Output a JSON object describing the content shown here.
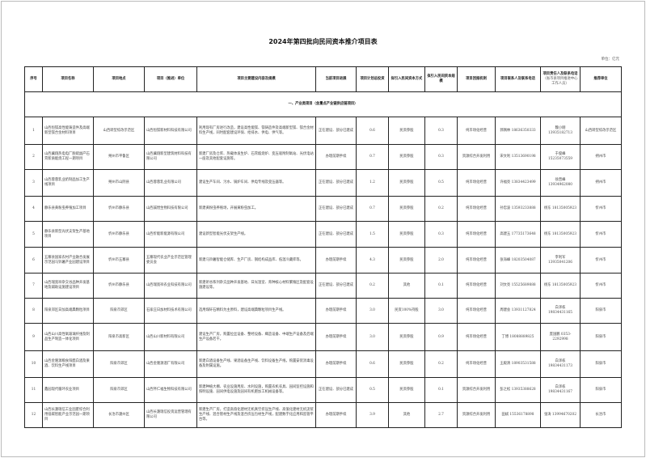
{
  "title": "2024年第四批向民间资本推介项目表",
  "unit": "单位：亿元",
  "headers": [
    "序号",
    "项目名称",
    "项目地点",
    "项目（推进）单位",
    "项目主要建设内容及规模",
    "当前项目进展",
    "项目计划总投资",
    "拟引入民间资本方式",
    "拟引入民间资本规模",
    "项目回报机制",
    "项目联系人及联系电话",
    "项目责任人及联系电话",
    "推荐单位"
  ],
  "header_note": "（省市县项目推进中心工作人员）",
  "section": "一、产业类项目（含重点产业链供应链项目）",
  "rows": [
    [
      "1",
      "山西恒镁高性能铸造件及高端新型镁合金材料项目",
      "山西转型综改示范区",
      "山西恒镁新材料科技有限公司",
      "利用现有厂房进行改造，建设高性能镁、镁铸造件及高端新型镁、镁合金材料生产线，同时配套建设环保、给排水、供电、供气等。",
      "正在建设、部分已建成",
      "0.6",
      "民资参股",
      "0.3",
      "纯市场化经营",
      "郭佩林 18636350333",
      "魏小刚 13935182713",
      "山西转型综改示范区"
    ],
    [
      "2",
      "山西冀翔热电电厂脱硫副产石膏新质能烧工程一期项目",
      "朔州市平鲁区",
      "山西冀翔新型建筑材料科技有限公司",
      "新建厂房及仓库、热载体发生炉、石膏煅烧炉、变压吸附制氧站、光伏电站一座及其他配套设施等。",
      "办理前期手续",
      "0.7",
      "民资参股",
      "0.3",
      "资源综合开发利用",
      "宋文利 13513690198",
      "于俊峰 15235073559",
      "朔州市"
    ],
    [
      "3",
      "山西蓉蓉乳业奶制品加工生产线项目",
      "朔州市山阴县",
      "山西蓉蓉乳业有限公司",
      "建设生产车间、污水、锅炉车间、供电专线及变压器等。",
      "正在建设、部分已建成",
      "1.2",
      "民资参股",
      "0.5",
      "纯市场化经营",
      "许福亮 13834423499",
      "徐晋峰 13934962080",
      "朔州市"
    ],
    [
      "4",
      "静乐县黄粉虫养殖加工项目",
      "忻州市静乐县",
      "山西誠煜生物科技有限公司",
      "新建黄粉虫养殖场，开展黄粉虫加工。",
      "正在建设、部分已建成",
      "0.7",
      "民资参股",
      "0.2",
      "纯市场化经营",
      "孙忠波 13593233888",
      "杨东 18135005923",
      "忻州市"
    ],
    [
      "5",
      "静乐县新型光伏支架生产基地项目",
      "忻州市静乐县",
      "山西忻能新能源有限公司",
      "建设新型智能光伏支架生产线。",
      "正在建设、部分已建成",
      "1.5",
      "民资参股",
      "0.3",
      "纯市场化经营",
      "高建玉 17735173648",
      "杨东 18135005923",
      "忻州市"
    ],
    [
      "6",
      "五寨县国家农村产业融合发展示范园马铃薯产业园建设项目",
      "忻州市五寨县",
      "五寨现代农业产业示范区管理委员会",
      "新建马铃薯智能仓储库、生产厂房、钢结构成品库、低温冷藏库等。",
      "办理前期手续",
      "4.3",
      "民资参股",
      "2.0",
      "纯市场化经营",
      "张海峰 18203504087",
      "李利军 13935041206",
      "忻州市"
    ],
    [
      "7",
      "山西瑞宽祥杂交谷品种开发基地及辅助设施建设项目",
      "忻州市静乐县",
      "山西瑞宽祥农业科技有限公司",
      "新建祈谷系列杂交品种开发基地、日光温室、育种核心材料繁殖区及配套设施建设等。",
      "正在建设、部分已建成",
      "0.2",
      "其他",
      "0.1",
      "纯市场化经营",
      "刘文亮 15525689888",
      "杨东 18135005923",
      "忻州市"
    ],
    [
      "8",
      "阳泉郊区日加高端典颗粒项目",
      "阳泉市郊区",
      "石家庄日加材料技术有限公司",
      "选用煤矸石精料为主原料，建设高端典颗粒项目生产线。",
      "办理前期手续",
      "3.0",
      "民资100%持股",
      "3.0",
      "纯市场化经营",
      "周建会 13931127824",
      "白泽栋 19834431165",
      "阳泉市"
    ],
    [
      "9",
      "山西山川高性氧玻璃纤维及制品生产制造一体化项目",
      "阳泉市高新区",
      "山西山川新材料有限公司",
      "建设生产厂房，购置拉丝设备、整经设备、織造设备、中端生产设备及后端生产设备若干。",
      "办理前期手续",
      "3.0",
      "民资参股",
      "0.9",
      "纯市场化经营",
      "丁博 18088889825",
      "庞国鹏 0353-2292998",
      "阳泉市"
    ],
    [
      "10",
      "山西金隆源粮食阳醋白酒及果酒、饮料生产线项目",
      "阳泉市郊区",
      "山西金隆源酒厂有限公司",
      "新建白酒设备生产线、果酒设备生产线、饮料设备生产线，购置安装消毒设备及附属设施。",
      "办理前期手续",
      "0.6",
      "民资参股",
      "0.2",
      "纯市场化经营",
      "王殿清 18903531588",
      "白泽栋 19834431173",
      "阳泉市"
    ],
    [
      "11",
      "鑫园现代循环农业项目",
      "阳泉市郊区",
      "山西怀仁福生物科技有限公司",
      "新建种植大棚、农业设施用房、水利设施，购置农机农具、园间监控设施和照明设施、园间供电设施及园间有机肥加工机械设备等。",
      "正在建设、部分已建成",
      "0.5",
      "民资参股",
      "0.1",
      "资源综合开发利用",
      "彭之松 13935388628",
      "白泽栋 19834431167",
      "阳泉市"
    ],
    [
      "12",
      "山西长潞瑞信工业固废综合利用低碳智能产业示范园一期项目",
      "长治市潞州区",
      "山西长潞瑞信投资运营管理有限公司",
      "新建生产厂房，打造高值化建材无机真空挤压生产线、高值化建材无机流浆生产线、混合管材生产线及混合挤压包材生产线，配建数字化应用和监管平台等。",
      "办理前期手续",
      "3.9",
      "其他",
      "2.7",
      "资源综合开发利用",
      "田斌 15536178898",
      "张涛 13994670202",
      "长治市"
    ]
  ]
}
